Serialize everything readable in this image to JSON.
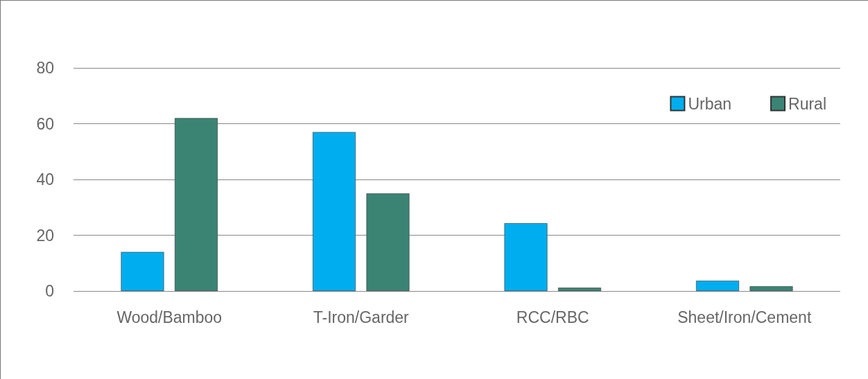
{
  "chart_data": {
    "type": "bar",
    "categories": [
      "Wood/Bamboo",
      "T-Iron/Garder",
      "RCC/RBC",
      "Sheet/Iron/Cement"
    ],
    "series": [
      {
        "name": "Urban",
        "color": "#00aeef",
        "values": [
          14,
          57,
          24.3,
          3.7
        ]
      },
      {
        "name": "Rural",
        "color": "#3b8474",
        "values": [
          62,
          35,
          1.2,
          1.7
        ]
      }
    ],
    "ylim": [
      0,
      80
    ],
    "yticks": [
      0,
      20,
      40,
      60,
      80
    ],
    "grid": "y",
    "legend": "top right"
  }
}
